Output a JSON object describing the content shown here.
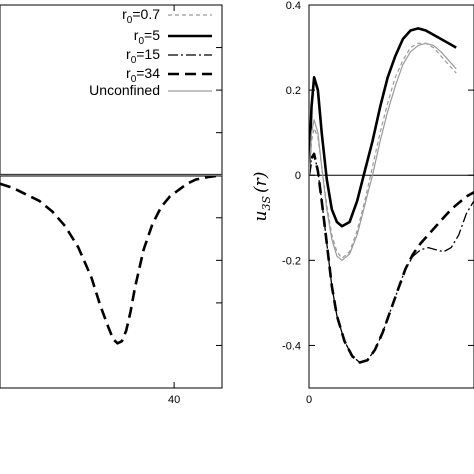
{
  "chart_data": [
    {
      "type": "line",
      "panel": "left",
      "x_ticks": [
        {
          "x": 40,
          "label": "40"
        }
      ],
      "ylim": [
        -0.5,
        0.4
      ],
      "xlim": [
        0,
        51
      ],
      "zero_line": true,
      "legend_position": "top-right",
      "series": [
        {
          "name": "r0=0.7",
          "style": "dashed-thin-gray",
          "x": [
            0,
            51
          ],
          "y": [
            0,
            0
          ]
        },
        {
          "name": "r0=5",
          "style": "solid-thick",
          "x": [
            0,
            51
          ],
          "y": [
            0,
            0
          ]
        },
        {
          "name": "r0=15",
          "style": "dashdot-thin",
          "x": [
            0,
            51
          ],
          "y": [
            0,
            0
          ]
        },
        {
          "name": "r0=34",
          "style": "dashed-thick",
          "x": [
            0,
            3,
            6,
            9,
            12,
            15,
            18,
            21,
            23,
            25,
            26,
            27,
            28,
            29,
            30,
            31,
            33,
            35,
            37,
            39,
            41,
            43,
            45,
            48,
            51
          ],
          "y": [
            -0.02,
            -0.03,
            -0.045,
            -0.06,
            -0.085,
            -0.12,
            -0.17,
            -0.24,
            -0.305,
            -0.36,
            -0.385,
            -0.395,
            -0.39,
            -0.365,
            -0.32,
            -0.265,
            -0.175,
            -0.115,
            -0.075,
            -0.05,
            -0.035,
            -0.02,
            -0.01,
            -0.004,
            0
          ]
        },
        {
          "name": "Unconfined",
          "style": "solid-thin-gray",
          "x": [
            0,
            51
          ],
          "y": [
            0,
            0
          ]
        }
      ],
      "legend": [
        {
          "main": "r",
          "sub": "0",
          "rest": "=0.7",
          "style": "dashed-thin-gray"
        },
        {
          "main": "r",
          "sub": "0",
          "rest": "=5",
          "style": "solid-thick"
        },
        {
          "main": "r",
          "sub": "0",
          "rest": "=15",
          "style": "dashdot-thin"
        },
        {
          "main": "r",
          "sub": "0",
          "rest": "=34",
          "style": "dashed-thick"
        },
        {
          "main": "Unconfined",
          "sub": "",
          "rest": "",
          "style": "solid-thin-gray"
        }
      ]
    },
    {
      "type": "line",
      "panel": "right",
      "ylabel": {
        "base": "u",
        "sub": "3S",
        "rest": "(r)"
      },
      "x_ticks": [
        {
          "x": 0,
          "label": "0"
        }
      ],
      "y_ticks": [
        {
          "y": 0.4,
          "label": "0.4"
        },
        {
          "y": 0.2,
          "label": "0.2"
        },
        {
          "y": 0,
          "label": "0"
        },
        {
          "y": -0.2,
          "label": "-0.2"
        },
        {
          "y": -0.4,
          "label": "-0.4"
        }
      ],
      "ylim": [
        -0.5,
        0.4
      ],
      "xlim": [
        0,
        6.5
      ],
      "zero_line": true,
      "series": [
        {
          "name": "r0=0.7",
          "style": "dashed-thin-gray",
          "x": [
            0,
            0.1,
            0.2,
            0.35,
            0.5,
            0.7,
            0.9,
            1.1,
            1.3,
            1.6,
            1.9,
            2.2,
            2.5,
            2.8,
            3.1,
            3.4,
            3.7,
            4.0,
            4.3,
            4.6,
            4.9,
            5.2,
            5.5,
            5.8
          ],
          "y": [
            0.0,
            0.08,
            0.11,
            0.09,
            0.02,
            -0.07,
            -0.14,
            -0.18,
            -0.195,
            -0.18,
            -0.13,
            -0.06,
            0.02,
            0.1,
            0.17,
            0.23,
            0.27,
            0.3,
            0.31,
            0.31,
            0.3,
            0.28,
            0.26,
            0.24
          ]
        },
        {
          "name": "r0=5",
          "style": "solid-thick",
          "x": [
            0,
            0.1,
            0.2,
            0.35,
            0.5,
            0.7,
            0.9,
            1.1,
            1.3,
            1.6,
            1.9,
            2.2,
            2.5,
            2.8,
            3.1,
            3.4,
            3.7,
            4.0,
            4.3,
            4.6,
            4.9,
            5.2,
            5.5,
            5.8
          ],
          "y": [
            0.0,
            0.16,
            0.23,
            0.2,
            0.1,
            -0.01,
            -0.08,
            -0.11,
            -0.12,
            -0.11,
            -0.06,
            0.01,
            0.08,
            0.16,
            0.23,
            0.28,
            0.32,
            0.34,
            0.345,
            0.34,
            0.33,
            0.32,
            0.31,
            0.3
          ]
        },
        {
          "name": "r0=15",
          "style": "dashdot-thin",
          "x": [
            0,
            0.1,
            0.2,
            0.35,
            0.5,
            0.7,
            0.9,
            1.1,
            1.4,
            1.7,
            2.0,
            2.3,
            2.6,
            2.9,
            3.2,
            3.5,
            3.8,
            4.1,
            4.4,
            4.7,
            5.0,
            5.3,
            5.6,
            5.9,
            6.2,
            6.5
          ],
          "y": [
            0.0,
            0.04,
            0.05,
            0.01,
            -0.06,
            -0.16,
            -0.26,
            -0.33,
            -0.39,
            -0.425,
            -0.44,
            -0.435,
            -0.41,
            -0.37,
            -0.32,
            -0.27,
            -0.22,
            -0.19,
            -0.175,
            -0.17,
            -0.175,
            -0.18,
            -0.17,
            -0.14,
            -0.09,
            -0.06
          ]
        },
        {
          "name": "r0=34",
          "style": "dashed-thick",
          "x": [
            0,
            0.1,
            0.2,
            0.35,
            0.5,
            0.7,
            0.9,
            1.1,
            1.4,
            1.7,
            2.0,
            2.3,
            2.6,
            2.9,
            3.2,
            3.5,
            3.8,
            4.1,
            4.4,
            4.7,
            5.0,
            5.3,
            5.6,
            5.9,
            6.2,
            6.5
          ],
          "y": [
            0.0,
            0.04,
            0.05,
            0.01,
            -0.06,
            -0.16,
            -0.26,
            -0.33,
            -0.39,
            -0.425,
            -0.44,
            -0.435,
            -0.41,
            -0.37,
            -0.32,
            -0.27,
            -0.22,
            -0.185,
            -0.16,
            -0.14,
            -0.12,
            -0.1,
            -0.08,
            -0.065,
            -0.05,
            -0.04
          ]
        },
        {
          "name": "Unconfined",
          "style": "solid-thin-gray",
          "x": [
            0,
            0.1,
            0.2,
            0.35,
            0.5,
            0.7,
            0.9,
            1.1,
            1.3,
            1.6,
            1.9,
            2.2,
            2.5,
            2.8,
            3.1,
            3.4,
            3.7,
            4.0,
            4.3,
            4.6,
            4.9,
            5.2,
            5.5,
            5.8
          ],
          "y": [
            0.0,
            0.1,
            0.13,
            0.1,
            0.02,
            -0.08,
            -0.15,
            -0.19,
            -0.2,
            -0.185,
            -0.14,
            -0.07,
            0.0,
            0.08,
            0.15,
            0.21,
            0.26,
            0.29,
            0.305,
            0.31,
            0.305,
            0.29,
            0.27,
            0.25
          ]
        }
      ]
    }
  ]
}
